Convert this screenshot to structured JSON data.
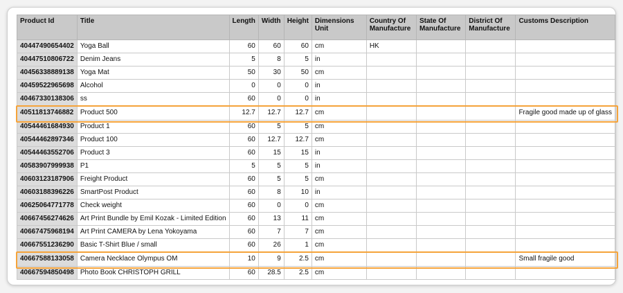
{
  "columns": [
    "Product Id",
    "Title",
    "Length",
    "Width",
    "Height",
    "Dimensions Unit",
    "Country Of Manufacture",
    "State Of Manufacture",
    "District Of Manufacture",
    "Customs Description"
  ],
  "rows": [
    {
      "id": "40447490654402",
      "title": "Yoga Ball",
      "length": "60",
      "width": "60",
      "height": "60",
      "unit": "cm",
      "country": "HK",
      "state": "",
      "district": "",
      "customs": "",
      "highlight": false
    },
    {
      "id": "40447510806722",
      "title": "Denim Jeans",
      "length": "5",
      "width": "8",
      "height": "5",
      "unit": "in",
      "country": "",
      "state": "",
      "district": "",
      "customs": "",
      "highlight": false
    },
    {
      "id": "40456338889138",
      "title": "Yoga Mat",
      "length": "50",
      "width": "30",
      "height": "50",
      "unit": "cm",
      "country": "",
      "state": "",
      "district": "",
      "customs": "",
      "highlight": false
    },
    {
      "id": "40459522965698",
      "title": "Alcohol",
      "length": "0",
      "width": "0",
      "height": "0",
      "unit": "in",
      "country": "",
      "state": "",
      "district": "",
      "customs": "",
      "highlight": false
    },
    {
      "id": "40467330138306",
      "title": "ss",
      "length": "60",
      "width": "0",
      "height": "0",
      "unit": "in",
      "country": "",
      "state": "",
      "district": "",
      "customs": "",
      "highlight": false
    },
    {
      "id": "40511813746882",
      "title": "Product 500",
      "length": "12.7",
      "width": "12.7",
      "height": "12.7",
      "unit": "cm",
      "country": "",
      "state": "",
      "district": "",
      "customs": "Fragile good made up of glass",
      "highlight": true
    },
    {
      "id": "40544461684930",
      "title": "Product 1",
      "length": "60",
      "width": "5",
      "height": "5",
      "unit": "cm",
      "country": "",
      "state": "",
      "district": "",
      "customs": "",
      "highlight": false
    },
    {
      "id": "40544462897346",
      "title": "Product 100",
      "length": "60",
      "width": "12.7",
      "height": "12.7",
      "unit": "cm",
      "country": "",
      "state": "",
      "district": "",
      "customs": "",
      "highlight": false
    },
    {
      "id": "40544463552706",
      "title": "Product 3",
      "length": "60",
      "width": "15",
      "height": "15",
      "unit": "in",
      "country": "",
      "state": "",
      "district": "",
      "customs": "",
      "highlight": false
    },
    {
      "id": "40583907999938",
      "title": "P1",
      "length": "5",
      "width": "5",
      "height": "5",
      "unit": "in",
      "country": "",
      "state": "",
      "district": "",
      "customs": "",
      "highlight": false
    },
    {
      "id": "40603123187906",
      "title": "Freight Product",
      "length": "60",
      "width": "5",
      "height": "5",
      "unit": "cm",
      "country": "",
      "state": "",
      "district": "",
      "customs": "",
      "highlight": false
    },
    {
      "id": "40603188396226",
      "title": "SmartPost Product",
      "length": "60",
      "width": "8",
      "height": "10",
      "unit": "in",
      "country": "",
      "state": "",
      "district": "",
      "customs": "",
      "highlight": false
    },
    {
      "id": "40625064771778",
      "title": "Check weight",
      "length": "60",
      "width": "0",
      "height": "0",
      "unit": "cm",
      "country": "",
      "state": "",
      "district": "",
      "customs": "",
      "highlight": false
    },
    {
      "id": "40667456274626",
      "title": "Art Print Bundle by Emil Kozak - Limited Edition",
      "length": "60",
      "width": "13",
      "height": "11",
      "unit": "cm",
      "country": "",
      "state": "",
      "district": "",
      "customs": "",
      "highlight": false
    },
    {
      "id": "40667475968194",
      "title": "Art Print CAMERA by Lena Yokoyama",
      "length": "60",
      "width": "7",
      "height": "7",
      "unit": "cm",
      "country": "",
      "state": "",
      "district": "",
      "customs": "",
      "highlight": false
    },
    {
      "id": "40667551236290",
      "title": "Basic T-Shirt Blue / small",
      "length": "60",
      "width": "26",
      "height": "1",
      "unit": "cm",
      "country": "",
      "state": "",
      "district": "",
      "customs": "",
      "highlight": false
    },
    {
      "id": "40667588133058",
      "title": "Camera Necklace Olympus OM",
      "length": "10",
      "width": "9",
      "height": "2.5",
      "unit": "cm",
      "country": "",
      "state": "",
      "district": "",
      "customs": "Small fragile good",
      "highlight": true
    },
    {
      "id": "40667594850498",
      "title": "Photo Book CHRISTOPH GRILL",
      "length": "60",
      "width": "28.5",
      "height": "2.5",
      "unit": "cm",
      "country": "",
      "state": "",
      "district": "",
      "customs": "",
      "highlight": false
    }
  ],
  "colors": {
    "highlight": "#f5a33a",
    "header_bg": "#c9c9c9",
    "id_bg": "#dcdcdc"
  }
}
